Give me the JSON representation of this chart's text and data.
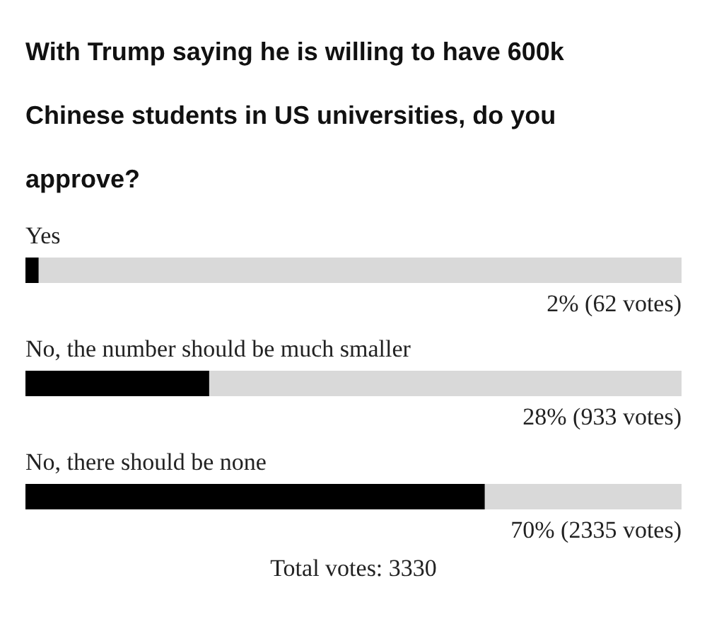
{
  "chart_data": {
    "type": "bar",
    "orientation": "horizontal",
    "title": "With Trump saying he is willing to have 600k Chinese students in US universities, do you approve?",
    "categories": [
      "Yes",
      "No, the number should be much smaller",
      "No, there should be none"
    ],
    "values": [
      2,
      28,
      70
    ],
    "value_labels": [
      "2% (62 votes)",
      "28% (933 votes)",
      "70% (2335 votes)"
    ],
    "color": "#000000",
    "xlim": [
      0,
      100
    ],
    "tick_labels": false,
    "annotations": [
      "Total votes: 3330"
    ]
  }
}
